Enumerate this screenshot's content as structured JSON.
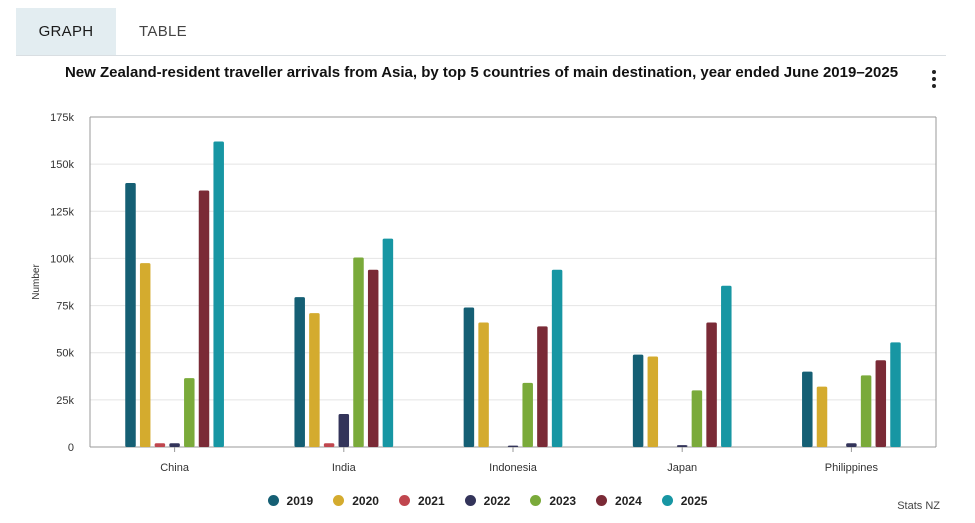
{
  "tabs": [
    {
      "label": "GRAPH",
      "active": true
    },
    {
      "label": "TABLE",
      "active": false
    }
  ],
  "menu_icon": "vertical-ellipsis-icon",
  "credit": "Stats NZ",
  "chart_data": {
    "type": "bar",
    "title": "New Zealand-resident traveller arrivals from Asia, by top 5 countries of main destination, year ended June 2019–2025",
    "xlabel": "",
    "ylabel": "Number",
    "ylim": [
      0,
      175000
    ],
    "yticks": [
      0,
      25000,
      50000,
      75000,
      100000,
      125000,
      150000,
      175000
    ],
    "ytick_labels": [
      "0",
      "25k",
      "50k",
      "75k",
      "100k",
      "125k",
      "150k",
      "175k"
    ],
    "grid": true,
    "legend_position": "bottom",
    "categories": [
      "China",
      "India",
      "Indonesia",
      "Japan",
      "Philippines"
    ],
    "series": [
      {
        "name": "2019",
        "color": "#155f74",
        "values": [
          140000,
          79500,
          74000,
          49000,
          40000
        ]
      },
      {
        "name": "2020",
        "color": "#d4ab2e",
        "values": [
          97500,
          71000,
          66000,
          48000,
          32000
        ]
      },
      {
        "name": "2021",
        "color": "#c0464e",
        "values": [
          2000,
          2000,
          0,
          0,
          0
        ]
      },
      {
        "name": "2022",
        "color": "#33345a",
        "values": [
          2000,
          17500,
          700,
          1000,
          2000
        ]
      },
      {
        "name": "2023",
        "color": "#7aaa3a",
        "values": [
          36500,
          100500,
          34000,
          30000,
          38000
        ]
      },
      {
        "name": "2024",
        "color": "#7a2a36",
        "values": [
          136000,
          94000,
          64000,
          66000,
          46000
        ]
      },
      {
        "name": "2025",
        "color": "#1796a3",
        "values": [
          162000,
          110500,
          94000,
          85500,
          55500
        ]
      }
    ]
  }
}
